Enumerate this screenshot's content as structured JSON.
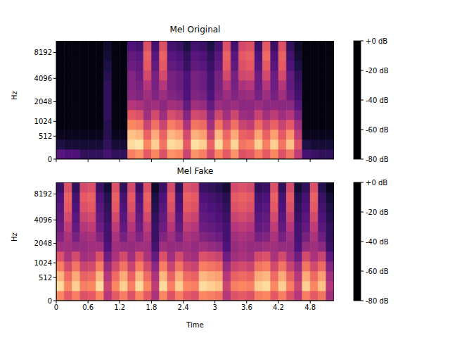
{
  "chart_data": [
    {
      "type": "heatmap",
      "title": "Mel Original",
      "ylabel": "Hz",
      "xlim": [
        0,
        5.25
      ],
      "xticks": [
        0,
        0.6,
        1.2,
        1.8,
        2.4,
        3,
        3.6,
        4.2,
        4.8
      ],
      "ylim": [
        0,
        11025
      ],
      "yticks": [
        0,
        512,
        1024,
        2048,
        4096,
        8192
      ],
      "tick_labels": "y",
      "time_bins": [
        0,
        0.15,
        0.3,
        0.45,
        0.6,
        0.75,
        0.9,
        1.05,
        1.2,
        1.35,
        1.5,
        1.65,
        1.8,
        1.95,
        2.1,
        2.25,
        2.4,
        2.55,
        2.7,
        2.85,
        3,
        3.15,
        3.3,
        3.45,
        3.6,
        3.75,
        3.9,
        4.05,
        4.2,
        4.35,
        4.5,
        4.65,
        4.8,
        4.95,
        5.1,
        5.25
      ],
      "freq_bins": [
        0,
        185,
        420,
        716,
        1091,
        1565,
        2165,
        2924,
        3882,
        5095,
        6629,
        8572,
        11025
      ],
      "cells": [
        [
          -58,
          -60,
          -60,
          -66,
          -66,
          -66,
          -62,
          -66,
          -66,
          -22,
          -18,
          -30,
          -20,
          -32,
          -18,
          -20,
          -36,
          -18,
          -22,
          -34,
          -20,
          -30,
          -18,
          -32,
          -30,
          -22,
          -30,
          -20,
          -32,
          -24,
          -38,
          -62,
          -64,
          -66,
          -66
        ],
        [
          -70,
          -72,
          -72,
          -72,
          -72,
          -72,
          -66,
          -72,
          -72,
          -6,
          -4,
          -20,
          -8,
          -24,
          -6,
          -8,
          -30,
          -5,
          -8,
          -28,
          -6,
          -22,
          -7,
          -24,
          -22,
          -8,
          -22,
          -8,
          -24,
          -10,
          -32,
          -70,
          -72,
          -72,
          -72
        ],
        [
          -76,
          -76,
          -76,
          -76,
          -76,
          -76,
          -68,
          -76,
          -76,
          -10,
          -12,
          -28,
          -14,
          -28,
          -12,
          -15,
          -34,
          -13,
          -16,
          -36,
          -12,
          -27,
          -14,
          -28,
          -30,
          -15,
          -28,
          -16,
          -30,
          -18,
          -38,
          -76,
          -76,
          -76,
          -76
        ],
        [
          -78,
          -78,
          -78,
          -78,
          -78,
          -78,
          -68,
          -78,
          -78,
          -20,
          -22,
          -36,
          -25,
          -36,
          -22,
          -26,
          -42,
          -24,
          -26,
          -44,
          -24,
          -36,
          -25,
          -36,
          -38,
          -26,
          -35,
          -28,
          -36,
          -30,
          -44,
          -78,
          -78,
          -78,
          -78
        ],
        [
          -78,
          -78,
          -78,
          -78,
          -78,
          -78,
          -66,
          -78,
          -78,
          -30,
          -32,
          -44,
          -34,
          -45,
          -33,
          -36,
          -50,
          -34,
          -36,
          -50,
          -35,
          -44,
          -35,
          -45,
          -46,
          -36,
          -44,
          -38,
          -44,
          -40,
          -52,
          -78,
          -78,
          -78,
          -78
        ],
        [
          -78,
          -78,
          -78,
          -78,
          -78,
          -78,
          -66,
          -78,
          -78,
          -40,
          -42,
          -46,
          -44,
          -48,
          -43,
          -45,
          -56,
          -44,
          -46,
          -56,
          -45,
          -47,
          -45,
          -48,
          -48,
          -45,
          -48,
          -47,
          -48,
          -48,
          -58,
          -78,
          -78,
          -78,
          -78
        ],
        [
          -78,
          -78,
          -78,
          -78,
          -78,
          -78,
          -66,
          -78,
          -78,
          -48,
          -50,
          -44,
          -50,
          -45,
          -50,
          -52,
          -60,
          -50,
          -52,
          -60,
          -50,
          -45,
          -50,
          -46,
          -45,
          -52,
          -45,
          -52,
          -44,
          -54,
          -62,
          -78,
          -78,
          -78,
          -78
        ],
        [
          -78,
          -78,
          -78,
          -78,
          -78,
          -78,
          -66,
          -78,
          -78,
          -50,
          -52,
          -40,
          -52,
          -40,
          -52,
          -54,
          -60,
          -52,
          -54,
          -62,
          -52,
          -40,
          -52,
          -42,
          -40,
          -54,
          -40,
          -54,
          -40,
          -56,
          -64,
          -78,
          -78,
          -78,
          -78
        ],
        [
          -78,
          -78,
          -78,
          -78,
          -78,
          -78,
          -68,
          -78,
          -78,
          -50,
          -54,
          -34,
          -52,
          -34,
          -52,
          -54,
          -60,
          -52,
          -54,
          -62,
          -52,
          -34,
          -52,
          -35,
          -34,
          -54,
          -34,
          -54,
          -34,
          -56,
          -66,
          -78,
          -78,
          -78,
          -78
        ],
        [
          -78,
          -78,
          -78,
          -78,
          -78,
          -78,
          -70,
          -78,
          -78,
          -54,
          -56,
          -30,
          -56,
          -30,
          -56,
          -58,
          -64,
          -56,
          -58,
          -64,
          -56,
          -30,
          -56,
          -32,
          -30,
          -58,
          -30,
          -58,
          -30,
          -60,
          -70,
          -78,
          -78,
          -78,
          -78
        ],
        [
          -78,
          -78,
          -78,
          -78,
          -78,
          -78,
          -72,
          -78,
          -78,
          -56,
          -58,
          -28,
          -58,
          -28,
          -58,
          -60,
          -66,
          -58,
          -60,
          -66,
          -58,
          -28,
          -58,
          -30,
          -28,
          -60,
          -26,
          -60,
          -28,
          -62,
          -72,
          -78,
          -78,
          -78,
          -78
        ],
        [
          -78,
          -78,
          -78,
          -78,
          -78,
          -78,
          -74,
          -78,
          -78,
          -60,
          -62,
          -32,
          -62,
          -32,
          -62,
          -64,
          -70,
          -62,
          -64,
          -70,
          -62,
          -32,
          -62,
          -34,
          -32,
          -64,
          -30,
          -64,
          -32,
          -66,
          -74,
          -78,
          -78,
          -78,
          -78
        ]
      ],
      "colorbar": {
        "range": [
          -80,
          0
        ],
        "ticks": [
          {
            "value": 0,
            "label": "+0 dB"
          },
          {
            "value": -20,
            "label": "-20 dB"
          },
          {
            "value": -40,
            "label": "-40 dB"
          },
          {
            "value": -60,
            "label": "-60 dB"
          },
          {
            "value": -80,
            "label": "-80 dB"
          }
        ]
      }
    },
    {
      "type": "heatmap",
      "title": "Mel Fake",
      "ylabel": "Hz",
      "xlabel": "Time",
      "xlim": [
        0,
        5.25
      ],
      "xticks": [
        0,
        0.6,
        1.2,
        1.8,
        2.4,
        3,
        3.6,
        4.2,
        4.8
      ],
      "ylim": [
        0,
        11025
      ],
      "yticks": [
        0,
        512,
        1024,
        2048,
        4096,
        8192
      ],
      "time_bins": [
        0,
        0.15,
        0.3,
        0.45,
        0.6,
        0.75,
        0.9,
        1.05,
        1.2,
        1.35,
        1.5,
        1.65,
        1.8,
        1.95,
        2.1,
        2.25,
        2.4,
        2.55,
        2.7,
        2.85,
        3,
        3.15,
        3.3,
        3.45,
        3.6,
        3.75,
        3.9,
        4.05,
        4.2,
        4.35,
        4.5,
        4.65,
        4.8,
        4.95,
        5.1,
        5.25
      ],
      "freq_bins": [
        0,
        185,
        420,
        716,
        1091,
        1565,
        2165,
        2924,
        3882,
        5095,
        6629,
        8572,
        11025
      ],
      "cells": [
        [
          -20,
          -30,
          -22,
          -32,
          -30,
          -20,
          -40,
          -30,
          -22,
          -32,
          -20,
          -30,
          -42,
          -20,
          -32,
          -22,
          -30,
          -32,
          -20,
          -22,
          -24,
          -40,
          -32,
          -30,
          -32,
          -22,
          -20,
          -30,
          -22,
          -32,
          -40,
          -22,
          -30,
          -24,
          -44
        ],
        [
          -6,
          -20,
          -8,
          -22,
          -20,
          -6,
          -36,
          -20,
          -8,
          -22,
          -6,
          -20,
          -38,
          -6,
          -22,
          -8,
          -20,
          -22,
          -6,
          -8,
          -10,
          -36,
          -22,
          -20,
          -22,
          -8,
          -6,
          -20,
          -8,
          -22,
          -36,
          -8,
          -20,
          -10,
          -40
        ],
        [
          -12,
          -26,
          -14,
          -28,
          -26,
          -12,
          -40,
          -26,
          -14,
          -28,
          -12,
          -26,
          -42,
          -12,
          -28,
          -14,
          -26,
          -28,
          -12,
          -14,
          -16,
          -40,
          -28,
          -26,
          -28,
          -14,
          -12,
          -26,
          -14,
          -28,
          -40,
          -14,
          -26,
          -16,
          -44
        ],
        [
          -22,
          -34,
          -24,
          -36,
          -34,
          -22,
          -46,
          -34,
          -24,
          -36,
          -22,
          -34,
          -48,
          -22,
          -36,
          -24,
          -34,
          -36,
          -22,
          -24,
          -26,
          -46,
          -36,
          -34,
          -36,
          -24,
          -22,
          -34,
          -24,
          -36,
          -46,
          -24,
          -34,
          -26,
          -50
        ],
        [
          -32,
          -42,
          -34,
          -44,
          -42,
          -32,
          -54,
          -42,
          -34,
          -44,
          -32,
          -42,
          -56,
          -32,
          -44,
          -34,
          -42,
          -44,
          -32,
          -34,
          -36,
          -54,
          -44,
          -42,
          -44,
          -34,
          -32,
          -42,
          -34,
          -44,
          -54,
          -34,
          -42,
          -36,
          -58
        ],
        [
          -44,
          -44,
          -46,
          -46,
          -44,
          -44,
          -60,
          -44,
          -46,
          -46,
          -44,
          -44,
          -62,
          -44,
          -46,
          -46,
          -44,
          -46,
          -44,
          -46,
          -48,
          -60,
          -46,
          -44,
          -46,
          -46,
          -44,
          -44,
          -46,
          -46,
          -60,
          -46,
          -44,
          -48,
          -64
        ],
        [
          -50,
          -42,
          -52,
          -44,
          -42,
          -50,
          -62,
          -42,
          -52,
          -44,
          -50,
          -42,
          -64,
          -50,
          -44,
          -52,
          -42,
          -44,
          -50,
          -52,
          -54,
          -62,
          -44,
          -42,
          -44,
          -52,
          -50,
          -42,
          -52,
          -44,
          -62,
          -52,
          -42,
          -54,
          -66
        ],
        [
          -54,
          -38,
          -56,
          -40,
          -38,
          -54,
          -62,
          -38,
          -56,
          -40,
          -54,
          -38,
          -64,
          -54,
          -40,
          -56,
          -38,
          -40,
          -54,
          -56,
          -58,
          -62,
          -40,
          -38,
          -40,
          -56,
          -54,
          -38,
          -56,
          -40,
          -62,
          -56,
          -38,
          -58,
          -66
        ],
        [
          -56,
          -34,
          -58,
          -36,
          -34,
          -56,
          -64,
          -34,
          -58,
          -36,
          -56,
          -34,
          -66,
          -56,
          -36,
          -58,
          -34,
          -36,
          -56,
          -58,
          -60,
          -64,
          -36,
          -34,
          -36,
          -58,
          -56,
          -34,
          -58,
          -36,
          -64,
          -58,
          -34,
          -60,
          -68
        ],
        [
          -58,
          -30,
          -60,
          -32,
          -30,
          -58,
          -66,
          -30,
          -60,
          -32,
          -58,
          -30,
          -68,
          -58,
          -32,
          -60,
          -30,
          -32,
          -58,
          -60,
          -62,
          -66,
          -32,
          -30,
          -32,
          -60,
          -58,
          -30,
          -60,
          -32,
          -66,
          -60,
          -30,
          -62,
          -70
        ],
        [
          -60,
          -28,
          -62,
          -30,
          -28,
          -60,
          -68,
          -28,
          -62,
          -30,
          -60,
          -28,
          -70,
          -60,
          -30,
          -62,
          -28,
          -30,
          -60,
          -62,
          -64,
          -68,
          -30,
          -28,
          -30,
          -62,
          -60,
          -28,
          -62,
          -30,
          -68,
          -62,
          -28,
          -64,
          -72
        ],
        [
          -64,
          -32,
          -66,
          -34,
          -32,
          -64,
          -72,
          -32,
          -66,
          -34,
          -64,
          -32,
          -74,
          -64,
          -34,
          -66,
          -32,
          -34,
          -64,
          -66,
          -68,
          -72,
          -34,
          -32,
          -34,
          -66,
          -64,
          -32,
          -66,
          -34,
          -72,
          -66,
          -32,
          -68,
          -76
        ]
      ],
      "colorbar": {
        "range": [
          -80,
          0
        ],
        "ticks": [
          {
            "value": 0,
            "label": "+0 dB"
          },
          {
            "value": -20,
            "label": "-20 dB"
          },
          {
            "value": -40,
            "label": "-40 dB"
          },
          {
            "value": -60,
            "label": "-60 dB"
          },
          {
            "value": -80,
            "label": "-80 dB"
          }
        ]
      }
    }
  ]
}
